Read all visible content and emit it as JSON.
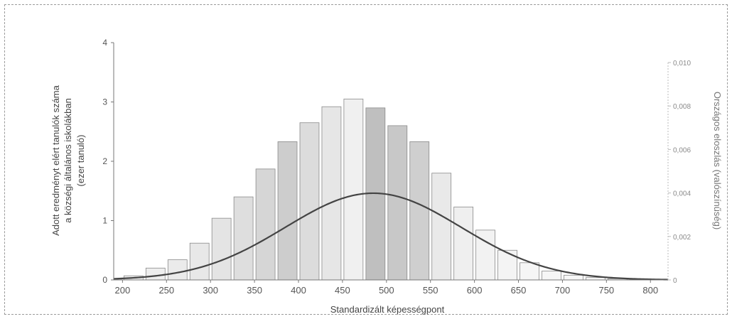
{
  "chart_data": {
    "type": "bar",
    "xlabel": "Standardizált képességpont",
    "ylabel_lines": [
      "Adott eredményt elért tanulók száma",
      "a községi általános iskolákban",
      "(ezer tanuló)"
    ],
    "ylabel_right": "Országos eloszlás (valószínűség)",
    "x_ticks": [
      200,
      250,
      300,
      350,
      400,
      450,
      500,
      550,
      600,
      650,
      700,
      750,
      800
    ],
    "y_ticks": [
      0,
      1,
      2,
      3,
      4
    ],
    "y_tick_labels": [
      "0",
      "1",
      "2",
      "3",
      "4"
    ],
    "y_right_ticks": [
      0,
      0.002,
      0.004,
      0.006,
      0.008,
      0.01
    ],
    "y_right_tick_labels": [
      "0",
      "0,002",
      "0,004",
      "0,006",
      "0,008",
      "0,010"
    ],
    "xlim": [
      190,
      820
    ],
    "ylim": [
      0,
      4
    ],
    "ylim_right": [
      0,
      0.01
    ],
    "series": [
      {
        "values": [
          {
            "x": 187.5,
            "y": 0.02
          },
          {
            "x": 212.5,
            "y": 0.07
          },
          {
            "x": 237.5,
            "y": 0.2
          },
          {
            "x": 262.5,
            "y": 0.34
          },
          {
            "x": 287.5,
            "y": 0.62
          },
          {
            "x": 312.5,
            "y": 1.04
          },
          {
            "x": 337.5,
            "y": 1.4
          },
          {
            "x": 362.5,
            "y": 1.87
          },
          {
            "x": 387.5,
            "y": 2.33
          },
          {
            "x": 412.5,
            "y": 2.65
          },
          {
            "x": 437.5,
            "y": 2.92
          },
          {
            "x": 462.5,
            "y": 3.05
          },
          {
            "x": 487.5,
            "y": 2.9
          },
          {
            "x": 512.5,
            "y": 2.6
          },
          {
            "x": 537.5,
            "y": 2.33
          },
          {
            "x": 562.5,
            "y": 1.8
          },
          {
            "x": 587.5,
            "y": 1.23
          },
          {
            "x": 612.5,
            "y": 0.84
          },
          {
            "x": 637.5,
            "y": 0.5
          },
          {
            "x": 662.5,
            "y": 0.29
          },
          {
            "x": 687.5,
            "y": 0.15
          },
          {
            "x": 712.5,
            "y": 0.08
          },
          {
            "x": 737.5,
            "y": 0.04
          },
          {
            "x": 762.5,
            "y": 0.02
          },
          {
            "x": 787.5,
            "y": 0.01
          }
        ],
        "bar_width": 25,
        "bar_fills": [
          "#f2f2f2",
          "#f0f0f0",
          "#eeeeee",
          "#ebebeb",
          "#e8e8e8",
          "#e4e4e4",
          "#dedede",
          "#d6d6d6",
          "#cdcdcd",
          "#dcdcdc",
          "#e6e6e6",
          "#f0f0f0",
          "#bfbfbf",
          "#c8c8c8",
          "#cfcfcf",
          "#e9e9e9",
          "#efefef",
          "#f2f2f2",
          "#f4f4f4",
          "#f5f5f5",
          "#f6f6f6",
          "#f7f7f7",
          "#f8f8f8",
          "#f9f9f9",
          "#fafafa"
        ]
      },
      {
        "type": "line",
        "axis": "right",
        "distribution": "normal",
        "mean": 485,
        "sd": 100,
        "color": "#444444"
      }
    ]
  }
}
